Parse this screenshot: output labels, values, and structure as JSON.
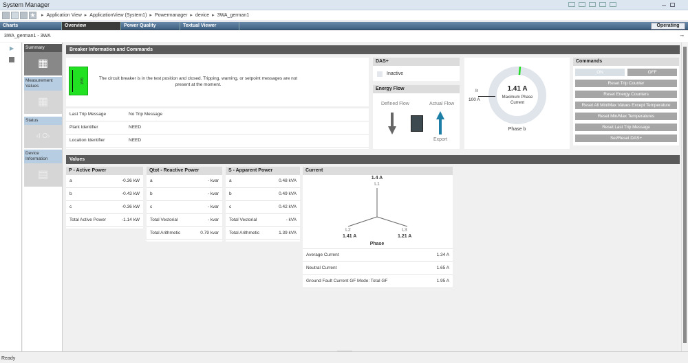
{
  "window": {
    "title": "System Manager"
  },
  "breadcrumb": [
    "Application View",
    "ApplicationView (System1)",
    "Powermanager",
    "device",
    "3WA_german1"
  ],
  "tabs": [
    {
      "label": "Charts"
    },
    {
      "label": "Overview",
      "active": true
    },
    {
      "label": "Power Quality"
    },
    {
      "label": "Textual Viewer"
    }
  ],
  "status_button": "Operating",
  "device_title": "3WA_german1 - 3WA",
  "nav": [
    {
      "label": "Summary",
      "icon": "grid-icon",
      "active": true
    },
    {
      "label": "Measurement Values",
      "icon": "table-icon"
    },
    {
      "label": "Status",
      "icon": "io-icon"
    },
    {
      "label": "Device Information",
      "icon": "device-icon"
    }
  ],
  "breaker": {
    "header": "Breaker Information and Commands",
    "icon_label": "test",
    "status_color": "#22e022",
    "message": "The circuit breaker is in the test position and closed. Tripping, warning, or setpoint messages are not present at the moment.",
    "rows": [
      {
        "label": "Last Trip Message",
        "value": "No Trip Message"
      },
      {
        "label": "Plant Identifier",
        "value": "NEED"
      },
      {
        "label": "Location Identifier",
        "value": "NEED"
      }
    ]
  },
  "das": {
    "header": "DAS+",
    "checkbox_label": "Inactive",
    "checked": false
  },
  "energy_flow": {
    "header": "Energy Flow",
    "defined_label": "Defined Flow",
    "actual_label": "Actual Flow",
    "actual_caption": "Export"
  },
  "gauge": {
    "value": "1.41 A",
    "caption": "Maximum Phase Current",
    "ir_label": "Ir",
    "ir_value": "100 A",
    "phase": "Phase b",
    "fraction": 0.0141
  },
  "commands": {
    "header": "Commands",
    "on": "ON",
    "off": "OFF",
    "buttons": [
      "Reset Trip Counter",
      "Reset Energy Counters",
      "Reset All Min/Max Values Except Temperature",
      "Reset Min/Max Temperatures",
      "Reset Last Trip Message",
      "Set/Reset DAS+"
    ]
  },
  "values": {
    "header": "Values",
    "active": {
      "title": "P - Active Power",
      "rows": [
        {
          "label": "a",
          "value": "-0.36 kW"
        },
        {
          "label": "b",
          "value": "-0.43 kW"
        },
        {
          "label": "c",
          "value": "-0.36 kW"
        },
        {
          "label": "Total Active Power",
          "value": "-1.14 kW"
        }
      ]
    },
    "reactive": {
      "title": "Qtot - Reactive Power",
      "rows": [
        {
          "label": "a",
          "value": "- kvar"
        },
        {
          "label": "b",
          "value": "- kvar"
        },
        {
          "label": "c",
          "value": "- kvar"
        },
        {
          "label": "Total Vectorial",
          "value": "- kvar"
        },
        {
          "label": "Total Arithmetic",
          "value": "0.79 kvar"
        }
      ]
    },
    "apparent": {
      "title": "S - Apparent Power",
      "rows": [
        {
          "label": "a",
          "value": "0.48 kVA"
        },
        {
          "label": "b",
          "value": "0.49 kVA"
        },
        {
          "label": "c",
          "value": "0.42 kVA"
        },
        {
          "label": "Total Vectorial",
          "value": "- kVA"
        },
        {
          "label": "Total Arithmetic",
          "value": "1.39 kVA"
        }
      ]
    },
    "current": {
      "title": "Current",
      "l1": "L1",
      "l1_value": "1.4 A",
      "l2": "L2",
      "l2_value": "1.41 A",
      "l3": "L3",
      "l3_value": "1.21 A",
      "phase_label": "Phase",
      "rows": [
        {
          "label": "Average Current",
          "value": "1.34 A"
        },
        {
          "label": "Neutral Current",
          "value": "1.65 A"
        },
        {
          "label": "Ground Fault Current GF Mode: Total GF",
          "value": "1.95 A"
        }
      ]
    }
  },
  "statusbar": "Ready"
}
